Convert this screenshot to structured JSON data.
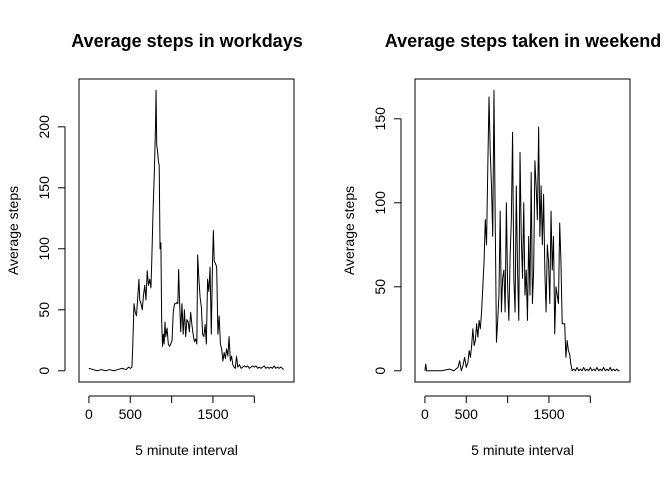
{
  "chart_data": [
    {
      "type": "line",
      "title": "Average steps in workdays",
      "xlabel": "5 minute interval",
      "ylabel": "Average steps",
      "xlim": [
        0,
        2355
      ],
      "ylim": [
        0,
        230
      ],
      "x_ticks": [
        {
          "value": 0,
          "label": "0"
        },
        {
          "value": 500,
          "label": "500"
        },
        {
          "value": 1000,
          "label": ""
        },
        {
          "value": 1500,
          "label": "1500"
        },
        {
          "value": 2000,
          "label": ""
        }
      ],
      "y_ticks": [
        {
          "value": 0,
          "label": "0"
        },
        {
          "value": 50,
          "label": "50"
        },
        {
          "value": 100,
          "label": "100"
        },
        {
          "value": 150,
          "label": "150"
        },
        {
          "value": 200,
          "label": "200"
        }
      ],
      "grid": false,
      "series": [
        {
          "points": [
            [
              0,
              2
            ],
            [
              50,
              1
            ],
            [
              100,
              0
            ],
            [
              150,
              1
            ],
            [
              200,
              0
            ],
            [
              250,
              1
            ],
            [
              300,
              0
            ],
            [
              350,
              1
            ],
            [
              400,
              2
            ],
            [
              450,
              1
            ],
            [
              480,
              3
            ],
            [
              500,
              2
            ],
            [
              520,
              3
            ],
            [
              530,
              20
            ],
            [
              545,
              55
            ],
            [
              560,
              48
            ],
            [
              575,
              45
            ],
            [
              590,
              60
            ],
            [
              605,
              75
            ],
            [
              615,
              58
            ],
            [
              630,
              55
            ],
            [
              645,
              50
            ],
            [
              660,
              62
            ],
            [
              675,
              70
            ],
            [
              690,
              58
            ],
            [
              705,
              82
            ],
            [
              720,
              70
            ],
            [
              735,
              75
            ],
            [
              750,
              68
            ],
            [
              760,
              90
            ],
            [
              775,
              130
            ],
            [
              790,
              160
            ],
            [
              805,
              200
            ],
            [
              812,
              230
            ],
            [
              820,
              185
            ],
            [
              830,
              180
            ],
            [
              840,
              172
            ],
            [
              850,
              168
            ],
            [
              860,
              100
            ],
            [
              870,
              105
            ],
            [
              880,
              40
            ],
            [
              890,
              20
            ],
            [
              900,
              30
            ],
            [
              910,
              22
            ],
            [
              920,
              40
            ],
            [
              930,
              28
            ],
            [
              945,
              35
            ],
            [
              960,
              22
            ],
            [
              975,
              20
            ],
            [
              990,
              22
            ],
            [
              1005,
              25
            ],
            [
              1020,
              48
            ],
            [
              1035,
              55
            ],
            [
              1050,
              55
            ],
            [
              1065,
              56
            ],
            [
              1075,
              55
            ],
            [
              1085,
              83
            ],
            [
              1095,
              60
            ],
            [
              1110,
              32
            ],
            [
              1125,
              55
            ],
            [
              1140,
              30
            ],
            [
              1155,
              50
            ],
            [
              1170,
              28
            ],
            [
              1185,
              42
            ],
            [
              1200,
              40
            ],
            [
              1215,
              32
            ],
            [
              1230,
              48
            ],
            [
              1245,
              38
            ],
            [
              1260,
              30
            ],
            [
              1275,
              24
            ],
            [
              1290,
              26
            ],
            [
              1305,
              22
            ],
            [
              1315,
              95
            ],
            [
              1330,
              75
            ],
            [
              1345,
              60
            ],
            [
              1360,
              52
            ],
            [
              1375,
              30
            ],
            [
              1390,
              28
            ],
            [
              1405,
              38
            ],
            [
              1420,
              22
            ],
            [
              1435,
              75
            ],
            [
              1450,
              65
            ],
            [
              1465,
              85
            ],
            [
              1480,
              30
            ],
            [
              1495,
              90
            ],
            [
              1505,
              115
            ],
            [
              1515,
              90
            ],
            [
              1530,
              88
            ],
            [
              1545,
              85
            ],
            [
              1560,
              30
            ],
            [
              1575,
              45
            ],
            [
              1590,
              22
            ],
            [
              1605,
              18
            ],
            [
              1620,
              8
            ],
            [
              1635,
              15
            ],
            [
              1650,
              10
            ],
            [
              1665,
              18
            ],
            [
              1680,
              12
            ],
            [
              1695,
              28
            ],
            [
              1710,
              8
            ],
            [
              1725,
              12
            ],
            [
              1740,
              5
            ],
            [
              1755,
              3
            ],
            [
              1770,
              2
            ],
            [
              1785,
              12
            ],
            [
              1800,
              3
            ],
            [
              1820,
              5
            ],
            [
              1840,
              2
            ],
            [
              1860,
              3
            ],
            [
              1880,
              4
            ],
            [
              1900,
              3
            ],
            [
              1920,
              4
            ],
            [
              1940,
              2
            ],
            [
              1960,
              3
            ],
            [
              1980,
              4
            ],
            [
              2000,
              3
            ],
            [
              2020,
              4
            ],
            [
              2040,
              2
            ],
            [
              2060,
              3
            ],
            [
              2080,
              2
            ],
            [
              2100,
              3
            ],
            [
              2120,
              4
            ],
            [
              2140,
              2
            ],
            [
              2160,
              3
            ],
            [
              2180,
              2
            ],
            [
              2200,
              3
            ],
            [
              2220,
              2
            ],
            [
              2240,
              4
            ],
            [
              2260,
              2
            ],
            [
              2280,
              3
            ],
            [
              2300,
              2
            ],
            [
              2320,
              3
            ],
            [
              2340,
              2
            ],
            [
              2355,
              1
            ]
          ]
        }
      ]
    },
    {
      "type": "line",
      "title": "Average steps taken in weekend",
      "xlabel": "5 minute interval",
      "ylabel": "Average steps",
      "xlim": [
        0,
        2355
      ],
      "ylim": [
        0,
        167
      ],
      "x_ticks": [
        {
          "value": 0,
          "label": "0"
        },
        {
          "value": 500,
          "label": "500"
        },
        {
          "value": 1000,
          "label": ""
        },
        {
          "value": 1500,
          "label": "1500"
        },
        {
          "value": 2000,
          "label": ""
        }
      ],
      "y_ticks": [
        {
          "value": 0,
          "label": "0"
        },
        {
          "value": 50,
          "label": "50"
        },
        {
          "value": 100,
          "label": "100"
        },
        {
          "value": 150,
          "label": "150"
        }
      ],
      "grid": false,
      "series": [
        {
          "points": [
            [
              0,
              0
            ],
            [
              10,
              4
            ],
            [
              20,
              0
            ],
            [
              100,
              0
            ],
            [
              200,
              0
            ],
            [
              300,
              1
            ],
            [
              350,
              0
            ],
            [
              400,
              2
            ],
            [
              420,
              6
            ],
            [
              440,
              0
            ],
            [
              460,
              3
            ],
            [
              480,
              8
            ],
            [
              500,
              2
            ],
            [
              520,
              5
            ],
            [
              535,
              12
            ],
            [
              550,
              8
            ],
            [
              565,
              15
            ],
            [
              580,
              25
            ],
            [
              595,
              15
            ],
            [
              610,
              18
            ],
            [
              625,
              28
            ],
            [
              640,
              20
            ],
            [
              655,
              30
            ],
            [
              670,
              25
            ],
            [
              685,
              35
            ],
            [
              700,
              50
            ],
            [
              715,
              65
            ],
            [
              730,
              90
            ],
            [
              745,
              75
            ],
            [
              760,
              120
            ],
            [
              775,
              163
            ],
            [
              790,
              130
            ],
            [
              805,
              110
            ],
            [
              820,
              80
            ],
            [
              835,
              167
            ],
            [
              850,
              90
            ],
            [
              865,
              17
            ],
            [
              880,
              30
            ],
            [
              895,
              45
            ],
            [
              910,
              95
            ],
            [
              925,
              35
            ],
            [
              940,
              55
            ],
            [
              955,
              60
            ],
            [
              970,
              35
            ],
            [
              985,
              100
            ],
            [
              1000,
              50
            ],
            [
              1015,
              30
            ],
            [
              1030,
              68
            ],
            [
              1045,
              90
            ],
            [
              1060,
              142
            ],
            [
              1075,
              55
            ],
            [
              1090,
              35
            ],
            [
              1105,
              110
            ],
            [
              1120,
              60
            ],
            [
              1135,
              30
            ],
            [
              1150,
              130
            ],
            [
              1165,
              80
            ],
            [
              1180,
              55
            ],
            [
              1195,
              100
            ],
            [
              1210,
              45
            ],
            [
              1225,
              60
            ],
            [
              1240,
              30
            ],
            [
              1255,
              80
            ],
            [
              1270,
              45
            ],
            [
              1285,
              118
            ],
            [
              1300,
              40
            ],
            [
              1315,
              60
            ],
            [
              1330,
              125
            ],
            [
              1345,
              110
            ],
            [
              1360,
              90
            ],
            [
              1375,
              145
            ],
            [
              1390,
              80
            ],
            [
              1405,
              110
            ],
            [
              1420,
              75
            ],
            [
              1435,
              105
            ],
            [
              1450,
              60
            ],
            [
              1465,
              35
            ],
            [
              1480,
              75
            ],
            [
              1495,
              65
            ],
            [
              1510,
              40
            ],
            [
              1525,
              95
            ],
            [
              1540,
              60
            ],
            [
              1555,
              80
            ],
            [
              1570,
              22
            ],
            [
              1585,
              50
            ],
            [
              1600,
              45
            ],
            [
              1615,
              40
            ],
            [
              1630,
              88
            ],
            [
              1645,
              65
            ],
            [
              1660,
              28
            ],
            [
              1675,
              28
            ],
            [
              1690,
              28
            ],
            [
              1705,
              8
            ],
            [
              1720,
              18
            ],
            [
              1735,
              12
            ],
            [
              1750,
              10
            ],
            [
              1765,
              4
            ],
            [
              1780,
              0
            ],
            [
              1800,
              1
            ],
            [
              1820,
              0
            ],
            [
              1840,
              2
            ],
            [
              1860,
              0
            ],
            [
              1880,
              1
            ],
            [
              1900,
              0
            ],
            [
              1920,
              2
            ],
            [
              1940,
              0
            ],
            [
              1960,
              1
            ],
            [
              1980,
              0
            ],
            [
              2000,
              2
            ],
            [
              2020,
              0
            ],
            [
              2040,
              1
            ],
            [
              2060,
              0
            ],
            [
              2080,
              2
            ],
            [
              2100,
              0
            ],
            [
              2120,
              1
            ],
            [
              2140,
              0
            ],
            [
              2160,
              2
            ],
            [
              2180,
              0
            ],
            [
              2200,
              1
            ],
            [
              2220,
              0
            ],
            [
              2240,
              2
            ],
            [
              2260,
              0
            ],
            [
              2280,
              1
            ],
            [
              2300,
              0
            ],
            [
              2320,
              1
            ],
            [
              2340,
              0
            ],
            [
              2355,
              0
            ]
          ]
        }
      ]
    }
  ]
}
